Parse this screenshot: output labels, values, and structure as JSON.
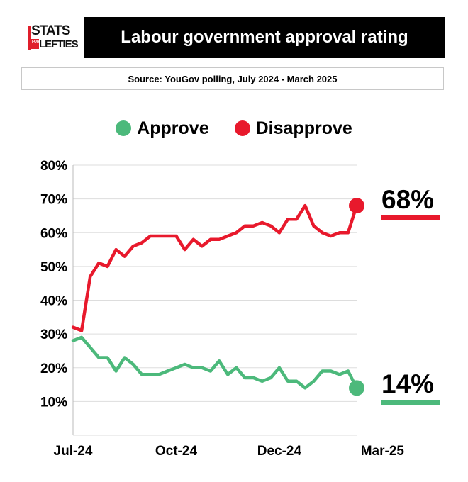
{
  "logo": {
    "top_text": "STATS",
    "small_text": "FOR",
    "bottom_text": "LEFTIES"
  },
  "title": "Labour government approval rating",
  "source": "Source: YouGov polling, July 2024 - March 2025",
  "colors": {
    "approve": "#4cb97b",
    "disapprove": "#e8192c",
    "grid": "#dddddd",
    "axis": "#bbbbbb"
  },
  "callouts": {
    "disapprove": "68%",
    "approve": "14%"
  },
  "chart_data": {
    "type": "line",
    "title": "Labour government approval rating",
    "xlabel": "",
    "ylabel": "",
    "x_tick_labels": [
      "Jul-24",
      "Oct-24",
      "Dec-24",
      "Mar-25"
    ],
    "x_tick_index": [
      0,
      12,
      24,
      36
    ],
    "y_ticks": [
      "80%",
      "70%",
      "60%",
      "50%",
      "40%",
      "30%",
      "20%",
      "10%"
    ],
    "y_tick_values": [
      80,
      70,
      60,
      50,
      40,
      30,
      20,
      10
    ],
    "ylim": [
      0,
      80
    ],
    "grid": true,
    "legend_position": "top-center",
    "series": [
      {
        "name": "Approve",
        "color": "#4cb97b",
        "values": [
          28,
          29,
          26,
          23,
          23,
          19,
          23,
          21,
          18,
          18,
          18,
          19,
          20,
          21,
          20,
          20,
          19,
          22,
          18,
          20,
          17,
          17,
          16,
          17,
          20,
          16,
          16,
          14,
          16,
          19,
          19,
          18,
          19,
          14
        ]
      },
      {
        "name": "Disapprove",
        "color": "#e8192c",
        "values": [
          32,
          31,
          47,
          51,
          50,
          55,
          53,
          56,
          57,
          59,
          59,
          59,
          59,
          55,
          58,
          56,
          58,
          58,
          59,
          60,
          62,
          62,
          63,
          62,
          60,
          64,
          64,
          68,
          62,
          60,
          59,
          60,
          60,
          68
        ]
      }
    ]
  }
}
